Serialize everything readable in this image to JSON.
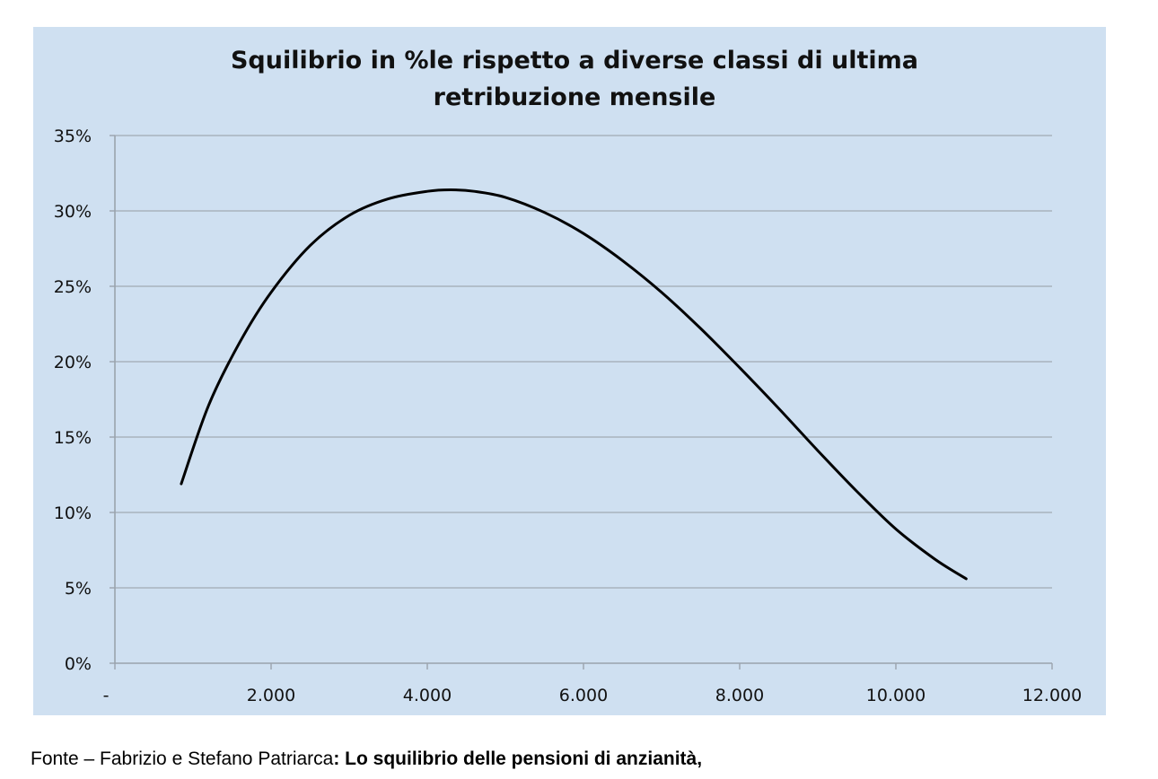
{
  "chart_data": {
    "type": "line",
    "title_lines": [
      "Squilibrio in %le rispetto a diverse classi di ultima",
      "retribuzione mensile"
    ],
    "xlabel": "",
    "ylabel": "",
    "xlim": [
      0,
      12000
    ],
    "ylim": [
      0,
      35
    ],
    "x_ticks": [
      0,
      2000,
      4000,
      6000,
      8000,
      10000,
      12000
    ],
    "x_tick_labels": [
      "-",
      "2.000",
      "4.000",
      "6.000",
      "8.000",
      "10.000",
      "12.000"
    ],
    "y_ticks": [
      0,
      5,
      10,
      15,
      20,
      25,
      30,
      35
    ],
    "y_tick_labels": [
      "0%",
      "5%",
      "10%",
      "15%",
      "20%",
      "25%",
      "30%",
      "35%"
    ],
    "grid": "horizontal",
    "series": [
      {
        "color": "#000000",
        "x": [
          850,
          1200,
          1600,
          2000,
          2500,
          3000,
          3500,
          4000,
          4300,
          4600,
          5000,
          5500,
          6000,
          6500,
          7000,
          7500,
          8000,
          8500,
          9000,
          9500,
          10000,
          10500,
          10900
        ],
        "y": [
          11.9,
          17.1,
          21.3,
          24.6,
          27.7,
          29.7,
          30.8,
          31.3,
          31.4,
          31.3,
          30.9,
          29.9,
          28.5,
          26.7,
          24.6,
          22.2,
          19.6,
          16.9,
          14.1,
          11.4,
          8.9,
          6.9,
          5.6
        ]
      }
    ],
    "colors": {
      "background": "#cfe0f1",
      "grid": "#a9b3bd",
      "axis": "#9aa3ad",
      "line": "#000000"
    }
  },
  "source": {
    "prefix": "Fonte –  Fabrizio e Stefano Patriarca",
    "bold": ": Lo squilibrio delle pensioni di anzianità,"
  }
}
